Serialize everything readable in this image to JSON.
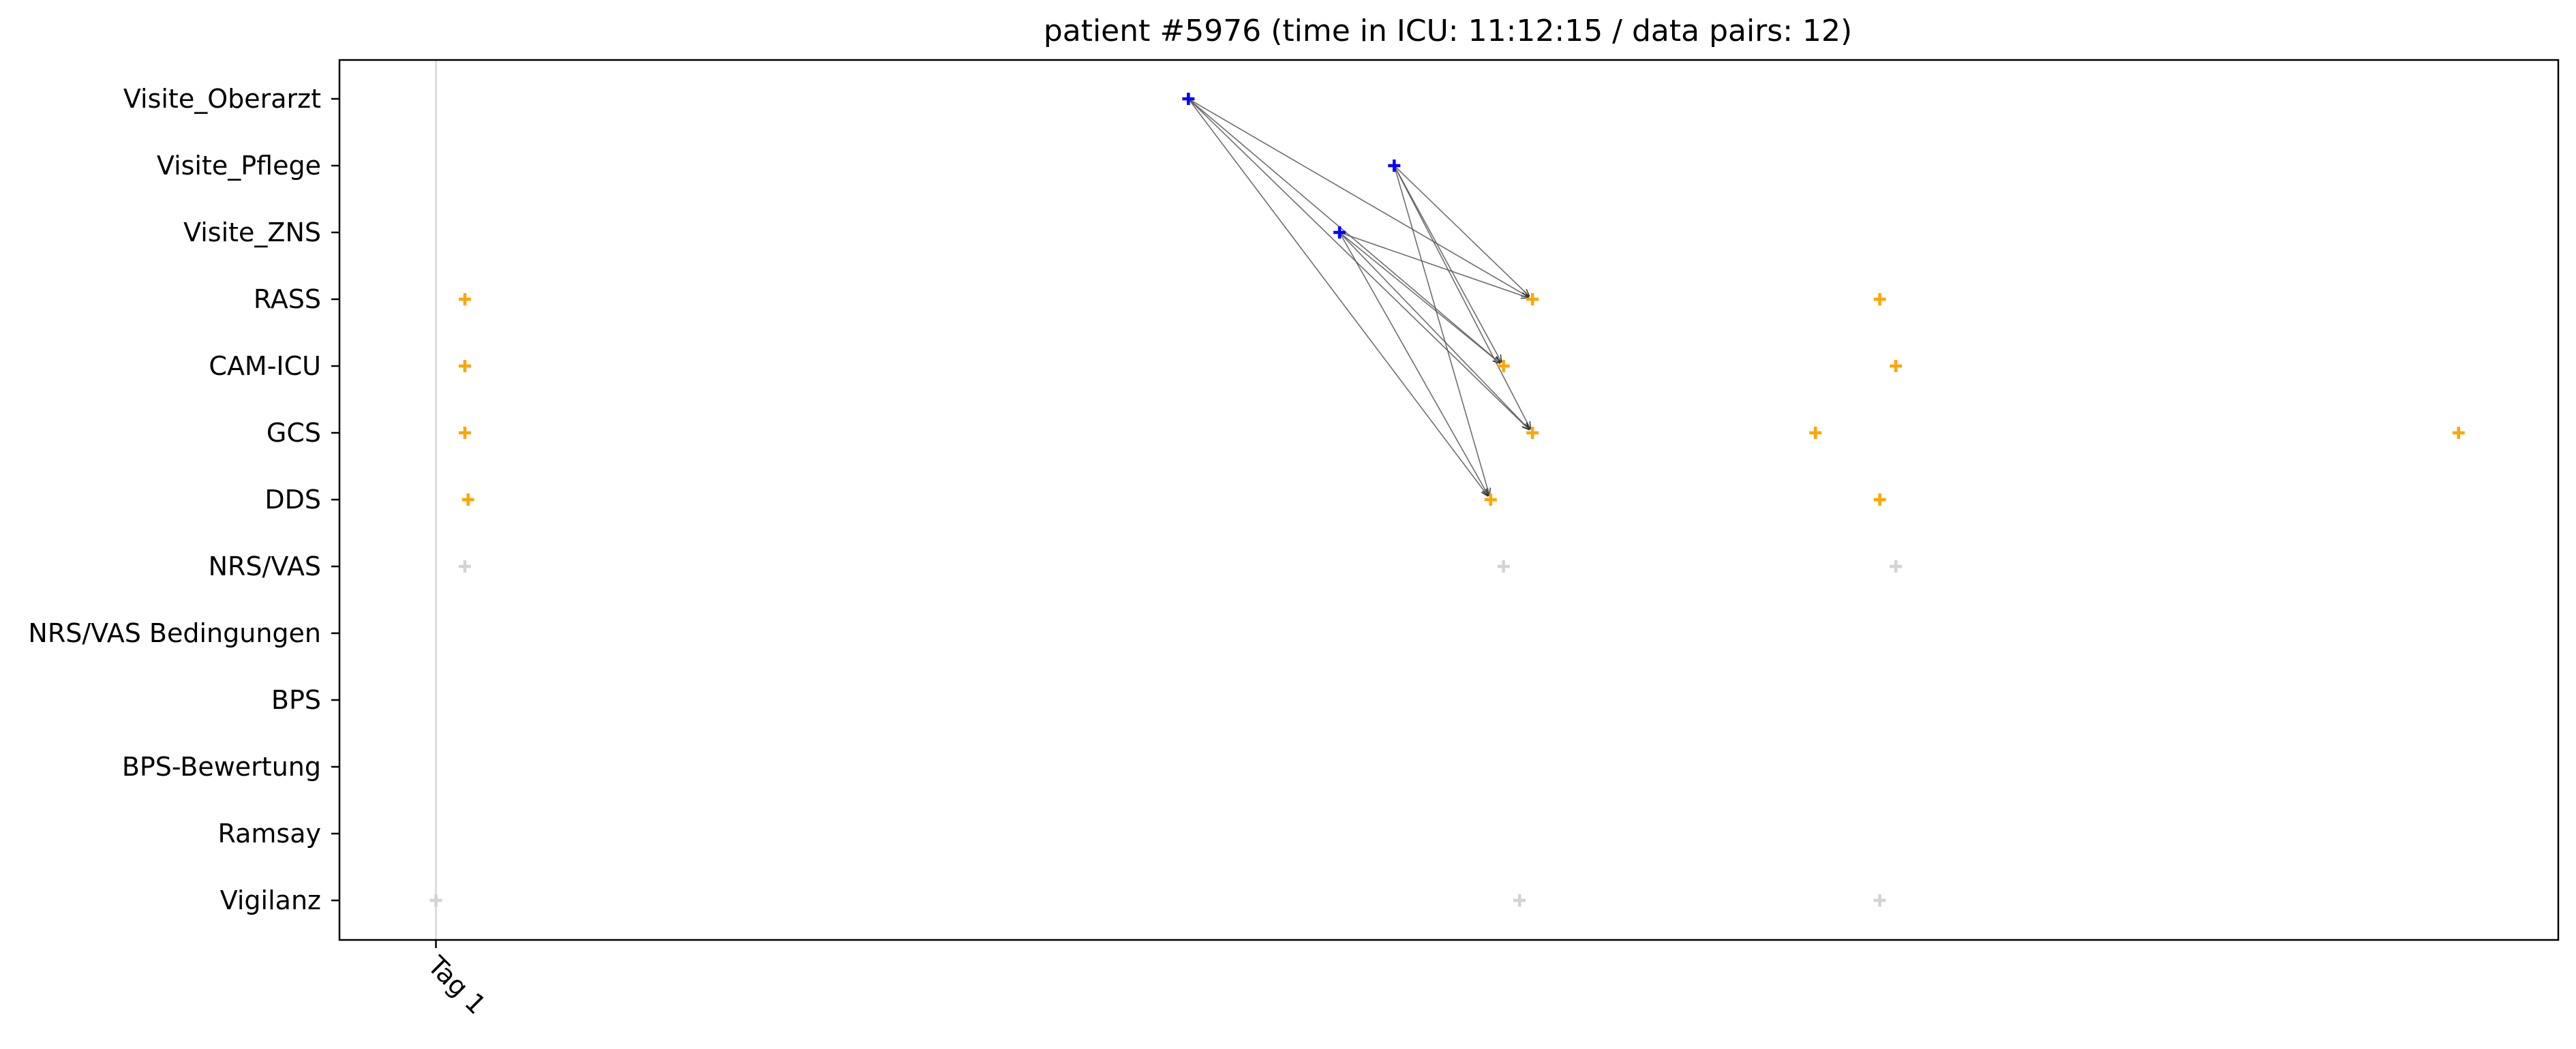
{
  "chart_data": {
    "type": "scatter",
    "title": "patient #5976 (time in ICU: 11:12:15 / data pairs: 12)",
    "xlabel": "",
    "ylabel": "",
    "xlim": [
      -0.15,
      3.3
    ],
    "x_ticks": [
      {
        "value": 0,
        "label": "Tag 1"
      }
    ],
    "categories": [
      "Visite_Oberarzt",
      "Visite_Pflege",
      "Visite_ZNS",
      "RASS",
      "CAM-ICU",
      "GCS",
      "DDS",
      "NRS/VAS",
      "NRS/VAS Bedingungen",
      "BPS",
      "BPS-Bewertung",
      "Ramsay",
      "Vigilanz"
    ],
    "grid": "vertical line at Tag 1",
    "legend": "none",
    "colors": {
      "visit": "#0000ff",
      "assessment": "#ffa500",
      "other": "#d3d3d3",
      "arrow": "#555555",
      "tagline": "#dddddd"
    },
    "series": [
      {
        "color": "#0000ff",
        "points": [
          {
            "x": 1.17,
            "y": "Visite_Oberarzt"
          },
          {
            "x": 1.49,
            "y": "Visite_Pflege"
          },
          {
            "x": 1.405,
            "y": "Visite_ZNS"
          }
        ]
      },
      {
        "color": "#ffa500",
        "points": [
          {
            "x": 0.045,
            "y": "RASS"
          },
          {
            "x": 1.705,
            "y": "RASS"
          },
          {
            "x": 2.245,
            "y": "RASS"
          },
          {
            "x": 0.045,
            "y": "CAM-ICU"
          },
          {
            "x": 1.66,
            "y": "CAM-ICU"
          },
          {
            "x": 2.27,
            "y": "CAM-ICU"
          },
          {
            "x": 0.045,
            "y": "GCS"
          },
          {
            "x": 1.705,
            "y": "GCS"
          },
          {
            "x": 2.145,
            "y": "GCS"
          },
          {
            "x": 3.145,
            "y": "GCS"
          },
          {
            "x": 0.05,
            "y": "DDS"
          },
          {
            "x": 1.64,
            "y": "DDS"
          },
          {
            "x": 2.245,
            "y": "DDS"
          }
        ]
      },
      {
        "color": "#d3d3d3",
        "points": [
          {
            "x": 0.045,
            "y": "NRS/VAS"
          },
          {
            "x": 1.66,
            "y": "NRS/VAS"
          },
          {
            "x": 2.27,
            "y": "NRS/VAS"
          },
          {
            "x": 0.0,
            "y": "Vigilanz"
          },
          {
            "x": 1.685,
            "y": "Vigilanz"
          },
          {
            "x": 2.245,
            "y": "Vigilanz"
          }
        ]
      }
    ],
    "pairs": [
      {
        "from": {
          "x": 1.17,
          "y": "Visite_Oberarzt"
        },
        "to": {
          "x": 1.705,
          "y": "RASS"
        }
      },
      {
        "from": {
          "x": 1.17,
          "y": "Visite_Oberarzt"
        },
        "to": {
          "x": 1.66,
          "y": "CAM-ICU"
        }
      },
      {
        "from": {
          "x": 1.17,
          "y": "Visite_Oberarzt"
        },
        "to": {
          "x": 1.705,
          "y": "GCS"
        }
      },
      {
        "from": {
          "x": 1.17,
          "y": "Visite_Oberarzt"
        },
        "to": {
          "x": 1.64,
          "y": "DDS"
        }
      },
      {
        "from": {
          "x": 1.49,
          "y": "Visite_Pflege"
        },
        "to": {
          "x": 1.705,
          "y": "RASS"
        }
      },
      {
        "from": {
          "x": 1.49,
          "y": "Visite_Pflege"
        },
        "to": {
          "x": 1.66,
          "y": "CAM-ICU"
        }
      },
      {
        "from": {
          "x": 1.49,
          "y": "Visite_Pflege"
        },
        "to": {
          "x": 1.705,
          "y": "GCS"
        }
      },
      {
        "from": {
          "x": 1.49,
          "y": "Visite_Pflege"
        },
        "to": {
          "x": 1.64,
          "y": "DDS"
        }
      },
      {
        "from": {
          "x": 1.405,
          "y": "Visite_ZNS"
        },
        "to": {
          "x": 1.705,
          "y": "RASS"
        }
      },
      {
        "from": {
          "x": 1.405,
          "y": "Visite_ZNS"
        },
        "to": {
          "x": 1.66,
          "y": "CAM-ICU"
        }
      },
      {
        "from": {
          "x": 1.405,
          "y": "Visite_ZNS"
        },
        "to": {
          "x": 1.705,
          "y": "GCS"
        }
      },
      {
        "from": {
          "x": 1.405,
          "y": "Visite_ZNS"
        },
        "to": {
          "x": 1.64,
          "y": "DDS"
        }
      }
    ]
  }
}
